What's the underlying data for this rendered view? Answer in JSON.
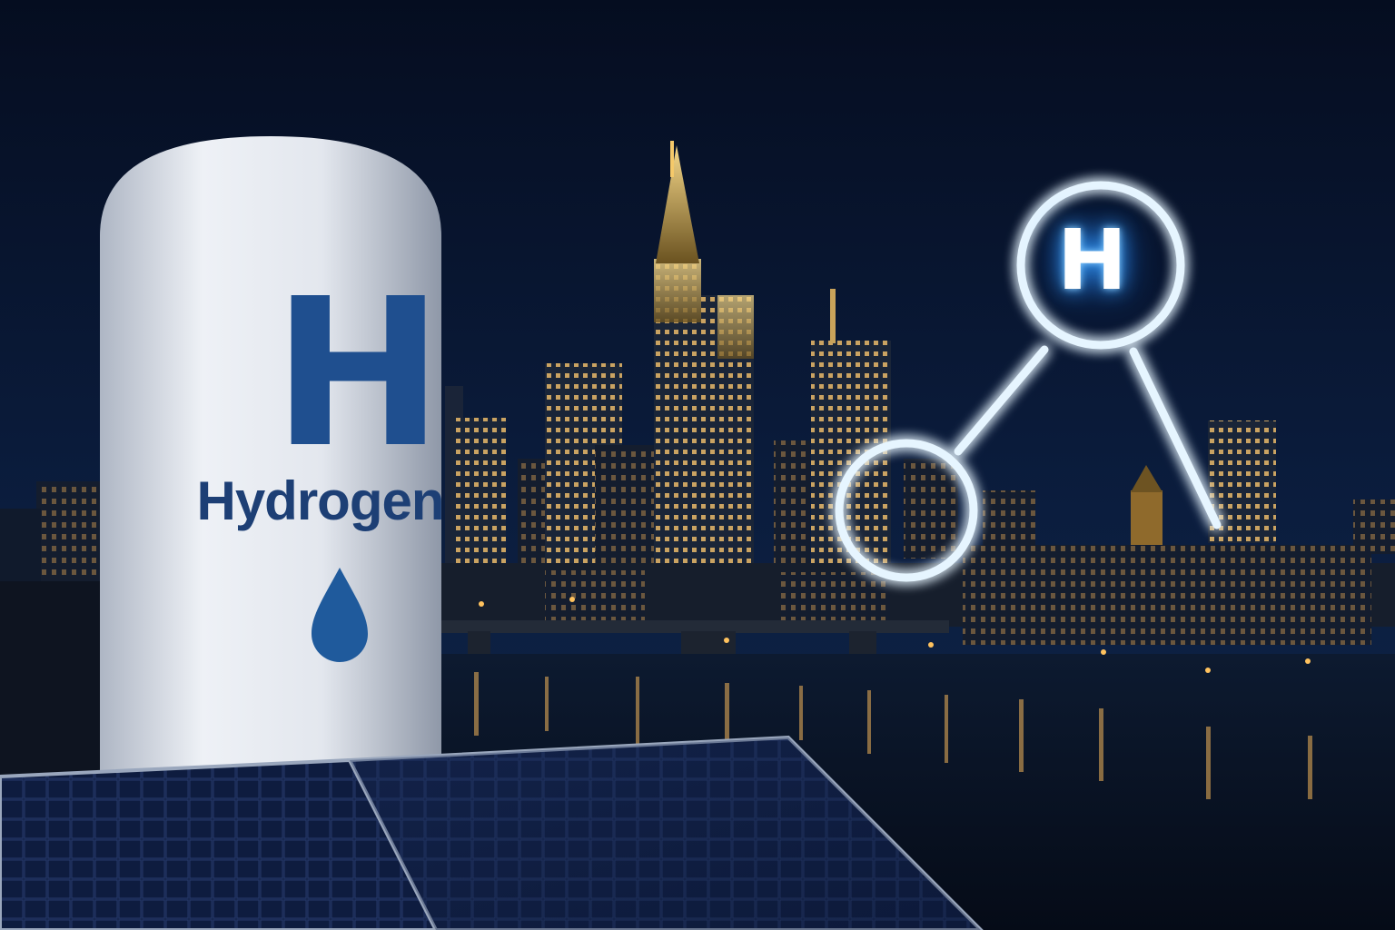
{
  "tank": {
    "symbol": "H",
    "label": "Hydrogen",
    "icon": "water-drop-icon"
  },
  "molecule": {
    "symbol": "H",
    "icon": "hydrogen-molecule-icon"
  },
  "colors": {
    "sky": "#07142e",
    "tank_text": "#1f4f8f",
    "glow": "#3ea6ff",
    "city_lights": "#f2b45a"
  }
}
